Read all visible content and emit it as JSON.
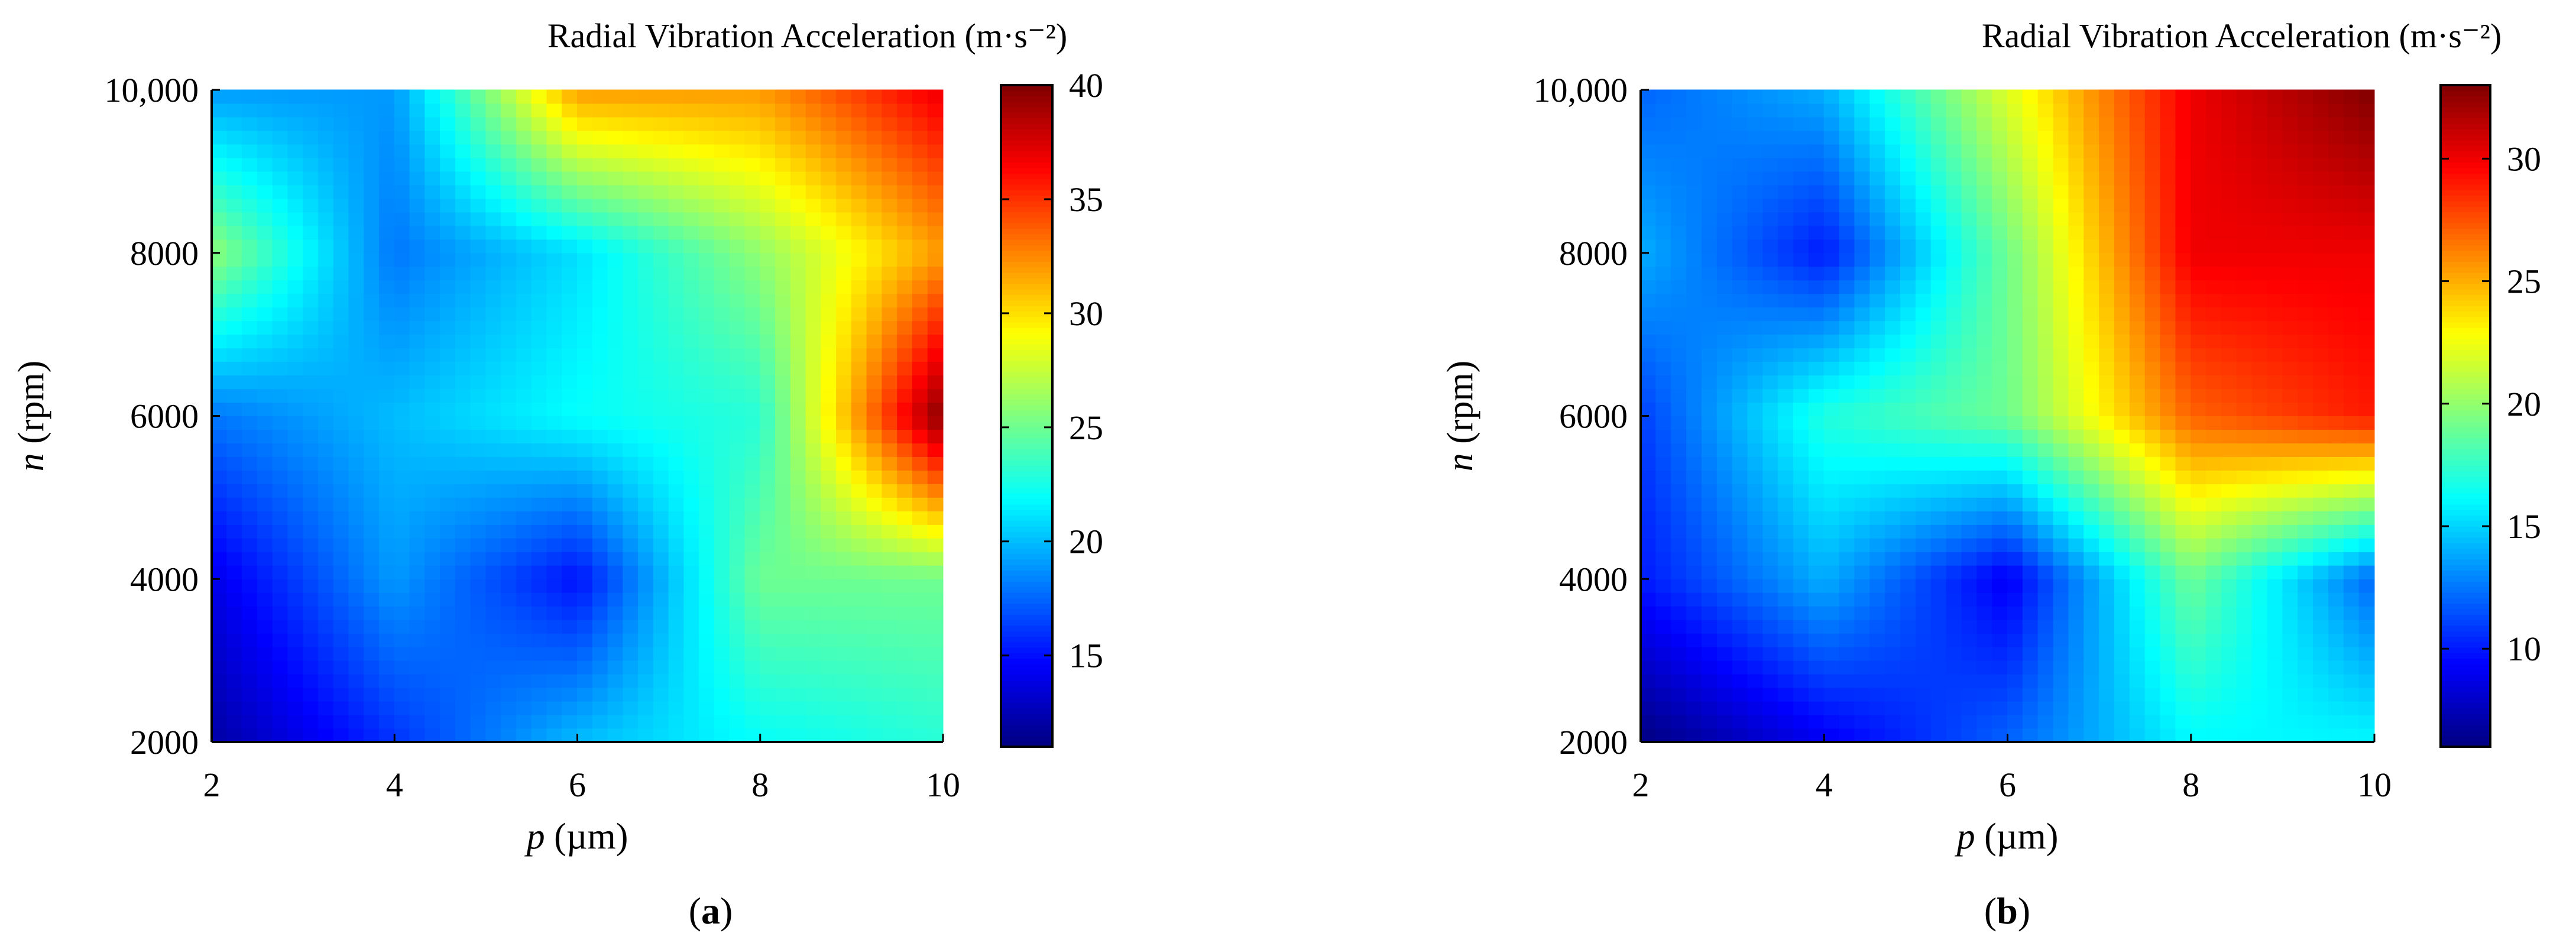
{
  "chart_data": [
    {
      "panel": "(a)",
      "panel_letter": "a",
      "type": "heatmap",
      "title": "Radial Vibration Acceleration (m·s⁻²)",
      "xlabel_var": "p",
      "xlabel_unit": " (µm)",
      "ylabel_var": "n",
      "ylabel_unit": " (rpm)",
      "x": [
        2,
        4,
        6,
        8,
        10
      ],
      "y": [
        2000,
        4000,
        6000,
        8000,
        10000
      ],
      "x_ticks": [
        "2",
        "4",
        "6",
        "8",
        "10"
      ],
      "y_ticks": [
        "2000",
        "4000",
        "6000",
        "8000",
        "10,000"
      ],
      "xlim": [
        2,
        10
      ],
      "ylim": [
        2000,
        10000
      ],
      "clim": [
        11,
        40
      ],
      "colorbar_ticks": [
        15,
        20,
        25,
        30,
        35,
        40
      ],
      "colormap": "jet",
      "z": [
        [
          12,
          16,
          20,
          22,
          23
        ],
        [
          14,
          19,
          15,
          25,
          25
        ],
        [
          18,
          20,
          22,
          23,
          40
        ],
        [
          26,
          18,
          21,
          26,
          32
        ],
        [
          19,
          19,
          32,
          32,
          37
        ]
      ]
    },
    {
      "panel": "(b)",
      "panel_letter": "b",
      "type": "heatmap",
      "title": "Radial Vibration Acceleration (m·s⁻²)",
      "xlabel_var": "p",
      "xlabel_unit": " (µm)",
      "ylabel_var": "n",
      "ylabel_unit": " (rpm)",
      "x": [
        2,
        4,
        6,
        8,
        10
      ],
      "y": [
        2000,
        4000,
        6000,
        8000,
        10000
      ],
      "x_ticks": [
        "2",
        "4",
        "6",
        "8",
        "10"
      ],
      "y_ticks": [
        "2000",
        "4000",
        "6000",
        "8000",
        "10,000"
      ],
      "xlim": [
        2,
        10
      ],
      "ylim": [
        2000,
        10000
      ],
      "clim": [
        6,
        33
      ],
      "colorbar_ticks": [
        10,
        15,
        20,
        25,
        30
      ],
      "colormap": "jet",
      "z": [
        [
          6,
          9,
          12,
          16,
          16
        ],
        [
          10,
          14,
          9,
          19,
          12
        ],
        [
          11,
          17,
          19,
          27,
          29
        ],
        [
          14,
          10,
          19,
          30,
          30
        ],
        [
          12,
          14,
          22,
          30,
          33
        ]
      ]
    }
  ]
}
